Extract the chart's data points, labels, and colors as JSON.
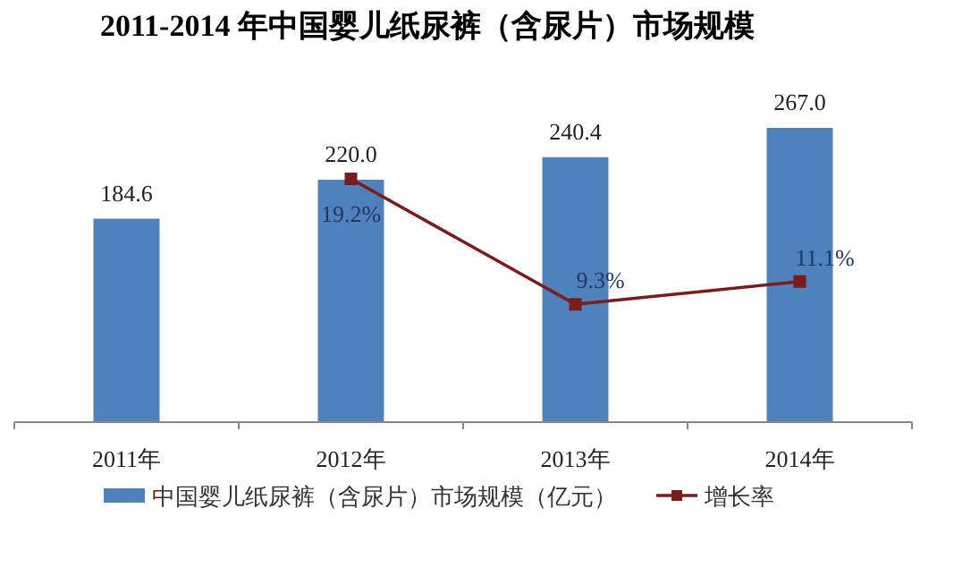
{
  "chart_data": {
    "type": "bar",
    "title": "2011-2014  年中国婴儿纸尿裤（含尿片）市场规模",
    "categories": [
      "2011年",
      "2012年",
      "2013年",
      "2014年"
    ],
    "series": [
      {
        "name": "中国婴儿纸尿裤（含尿片）市场规模（亿元）",
        "color": "#4f81bd",
        "values": [
          184.6,
          220.0,
          240.4,
          267.0
        ],
        "value_labels": [
          "184.6",
          "220.0",
          "240.4",
          "267.0"
        ]
      },
      {
        "name": "增长率",
        "type": "line",
        "axis": "y2",
        "color": "#7b1c1c",
        "marker": "square",
        "values": [
          null,
          19.2,
          9.3,
          11.1
        ],
        "value_labels": [
          null,
          "19.2%",
          "9.3%",
          "11.1%"
        ]
      }
    ],
    "legend": "bottom",
    "grid": false,
    "tick_labels": "x"
  }
}
